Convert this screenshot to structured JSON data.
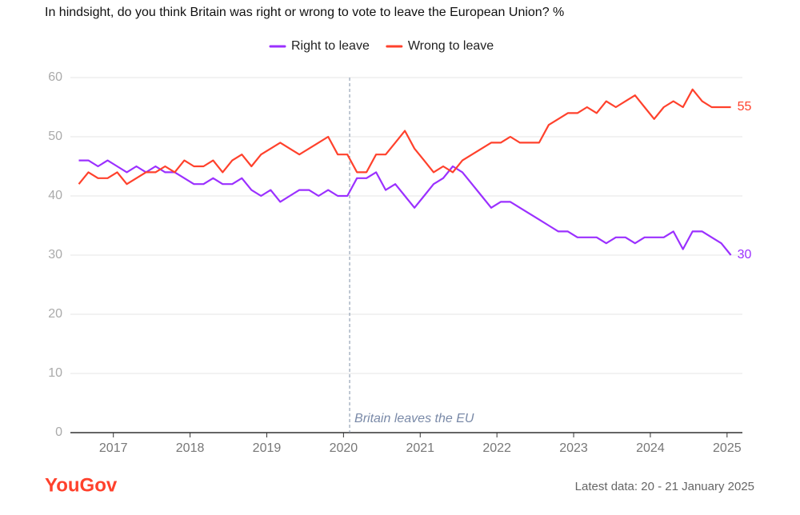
{
  "chart_data": {
    "type": "line",
    "title": "In hindsight, do you think Britain was right or wrong to vote to leave the European Union? %",
    "x": [
      2016.55,
      2016.675,
      2016.8,
      2016.925,
      2017.05,
      2017.175,
      2017.3,
      2017.425,
      2017.55,
      2017.675,
      2017.8,
      2017.925,
      2018.05,
      2018.175,
      2018.3,
      2018.425,
      2018.55,
      2018.675,
      2018.8,
      2018.925,
      2019.05,
      2019.175,
      2019.3,
      2019.425,
      2019.55,
      2019.675,
      2019.8,
      2019.925,
      2020.05,
      2020.175,
      2020.3,
      2020.425,
      2020.55,
      2020.675,
      2020.8,
      2020.925,
      2021.05,
      2021.175,
      2021.3,
      2021.425,
      2021.55,
      2021.675,
      2021.8,
      2021.925,
      2022.05,
      2022.175,
      2022.3,
      2022.425,
      2022.55,
      2022.675,
      2022.8,
      2022.925,
      2023.05,
      2023.175,
      2023.3,
      2023.425,
      2023.55,
      2023.675,
      2023.8,
      2023.925,
      2024.05,
      2024.175,
      2024.3,
      2024.425,
      2024.55,
      2024.675,
      2024.8,
      2024.925,
      2025.05
    ],
    "series": [
      {
        "name": "Right to leave",
        "color": "#9b30ff",
        "values": [
          46,
          46,
          45,
          46,
          45,
          44,
          45,
          44,
          45,
          44,
          44,
          43,
          42,
          42,
          43,
          42,
          42,
          43,
          41,
          40,
          41,
          39,
          40,
          41,
          41,
          40,
          41,
          40,
          40,
          43,
          43,
          44,
          41,
          42,
          40,
          38,
          40,
          42,
          43,
          45,
          44,
          42,
          40,
          38,
          39,
          39,
          38,
          37,
          36,
          35,
          34,
          34,
          33,
          33,
          33,
          32,
          33,
          33,
          32,
          33,
          33,
          33,
          34,
          31,
          34,
          34,
          33,
          32,
          30
        ]
      },
      {
        "name": "Wrong to leave",
        "color": "#ff412c",
        "values": [
          42,
          44,
          43,
          43,
          44,
          42,
          43,
          44,
          44,
          45,
          44,
          46,
          45,
          45,
          46,
          44,
          46,
          47,
          45,
          47,
          48,
          49,
          48,
          47,
          48,
          49,
          50,
          47,
          47,
          44,
          44,
          47,
          47,
          49,
          51,
          48,
          46,
          44,
          45,
          44,
          46,
          47,
          48,
          49,
          49,
          50,
          49,
          49,
          49,
          52,
          53,
          54,
          54,
          55,
          54,
          56,
          55,
          56,
          57,
          55,
          53,
          55,
          56,
          55,
          58,
          56,
          55,
          55,
          55
        ]
      }
    ],
    "xlim": [
      2016.44,
      2025.2
    ],
    "xticks": [
      2017,
      2018,
      2019,
      2020,
      2021,
      2022,
      2023,
      2024,
      2025
    ],
    "ylim": [
      0,
      60
    ],
    "yticks": [
      0,
      10,
      20,
      30,
      40,
      50,
      60
    ],
    "grid": true,
    "annotation": {
      "text": "Britain leaves the EU",
      "x": 2020.08
    },
    "brand": "YouGov",
    "note": "Latest data: 20 - 21 January 2025"
  }
}
